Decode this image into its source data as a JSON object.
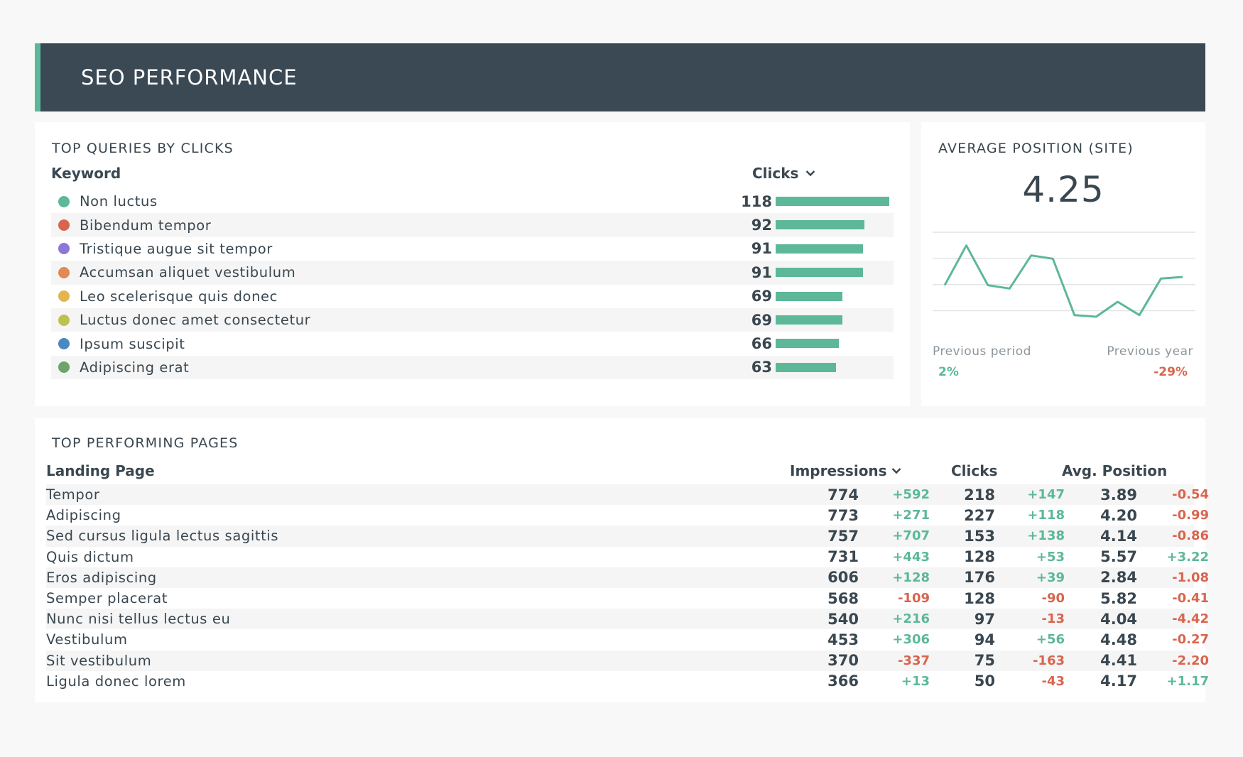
{
  "header": {
    "title": "SEO PERFORMANCE"
  },
  "colors": {
    "accent": "#5cb899",
    "positive": "#5cb899",
    "negative": "#d9654e",
    "header_bg": "#3b4954"
  },
  "queries": {
    "title": "TOP QUERIES BY CLICKS",
    "col_keyword": "Keyword",
    "col_clicks": "Clicks",
    "sort_icon": "chevron-down-icon",
    "max": 118,
    "rows": [
      {
        "label": "Non luctus",
        "value": 118,
        "color": "#5cb899"
      },
      {
        "label": "Bibendum tempor",
        "value": 92,
        "color": "#d9654e"
      },
      {
        "label": "Tristique augue sit tempor",
        "value": 91,
        "color": "#8e76d9"
      },
      {
        "label": "Accumsan aliquet vestibulum",
        "value": 91,
        "color": "#e08a56"
      },
      {
        "label": "Leo scelerisque quis donec",
        "value": 69,
        "color": "#e3b54e"
      },
      {
        "label": "Luctus donec amet consectetur",
        "value": 69,
        "color": "#bcc24f"
      },
      {
        "label": "Ipsum suscipit",
        "value": 66,
        "color": "#4a88c2"
      },
      {
        "label": "Adipiscing erat",
        "value": 63,
        "color": "#6da46a"
      }
    ]
  },
  "avg_position": {
    "title": "AVERAGE POSITION (SITE)",
    "value": "4.25",
    "prev_period_label": "Previous period",
    "prev_period_value": "2%",
    "prev_year_label": "Previous year",
    "prev_year_value": "-29%",
    "chart_data": {
      "type": "line",
      "series": [
        {
          "values": [
            4.6,
            3.4,
            4.6,
            4.7,
            3.7,
            3.8,
            5.5,
            5.55,
            5.1,
            5.5,
            4.4,
            4.35
          ]
        }
      ],
      "ylim": [
        3.0,
        6.0
      ],
      "grid": true
    }
  },
  "pages": {
    "title": "TOP PERFORMING PAGES",
    "col_page": "Landing Page",
    "col_impressions": "Impressions",
    "col_clicks": "Clicks",
    "col_position": "Avg. Position",
    "sort_icon": "chevron-down-icon",
    "rows": [
      {
        "page": "Tempor",
        "impressions": "774",
        "imp_delta": "+592",
        "clicks": "218",
        "clk_delta": "+147",
        "position": "3.89",
        "pos_delta": "-0.54"
      },
      {
        "page": "Adipiscing",
        "impressions": "773",
        "imp_delta": "+271",
        "clicks": "227",
        "clk_delta": "+118",
        "position": "4.20",
        "pos_delta": "-0.99"
      },
      {
        "page": "Sed cursus ligula lectus sagittis",
        "impressions": "757",
        "imp_delta": "+707",
        "clicks": "153",
        "clk_delta": "+138",
        "position": "4.14",
        "pos_delta": "-0.86"
      },
      {
        "page": "Quis dictum",
        "impressions": "731",
        "imp_delta": "+443",
        "clicks": "128",
        "clk_delta": "+53",
        "position": "5.57",
        "pos_delta": "+3.22"
      },
      {
        "page": "Eros adipiscing",
        "impressions": "606",
        "imp_delta": "+128",
        "clicks": "176",
        "clk_delta": "+39",
        "position": "2.84",
        "pos_delta": "-1.08"
      },
      {
        "page": "Semper placerat",
        "impressions": "568",
        "imp_delta": "-109",
        "clicks": "128",
        "clk_delta": "-90",
        "position": "5.82",
        "pos_delta": "-0.41"
      },
      {
        "page": "Nunc nisi tellus lectus eu",
        "impressions": "540",
        "imp_delta": "+216",
        "clicks": "97",
        "clk_delta": "-13",
        "position": "4.04",
        "pos_delta": "-4.42"
      },
      {
        "page": "Vestibulum",
        "impressions": "453",
        "imp_delta": "+306",
        "clicks": "94",
        "clk_delta": "+56",
        "position": "4.48",
        "pos_delta": "-0.27"
      },
      {
        "page": "Sit vestibulum",
        "impressions": "370",
        "imp_delta": "-337",
        "clicks": "75",
        "clk_delta": "-163",
        "position": "4.41",
        "pos_delta": "-2.20"
      },
      {
        "page": "Ligula donec lorem",
        "impressions": "366",
        "imp_delta": "+13",
        "clicks": "50",
        "clk_delta": "-43",
        "position": "4.17",
        "pos_delta": "+1.17"
      }
    ]
  }
}
